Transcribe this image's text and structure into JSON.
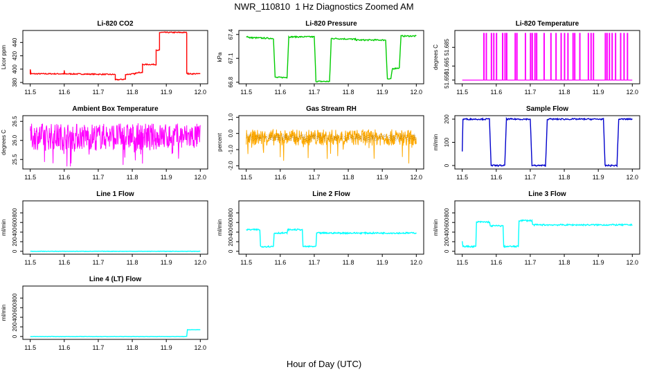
{
  "page": {
    "title": "NWR_110810  1 Hz Diagnostics Zoomed AM",
    "x_title": "Hour of Day (UTC)"
  },
  "chart_data": [
    {
      "type": "line",
      "title": "Li-820 CO2",
      "ylabel": "Licor ppm",
      "color": "#ff0000",
      "xlim": [
        11.5,
        12.0
      ],
      "xticks": [
        11.5,
        11.6,
        11.7,
        11.8,
        11.9,
        12.0
      ],
      "xtick_labels": [
        "11.5",
        "11.6",
        "11.7",
        "11.8",
        "11.9",
        "12.0"
      ],
      "ylim": [
        378,
        458
      ],
      "yticks": [
        380,
        400,
        420,
        440
      ],
      "ytick_labels": [
        "380",
        "400",
        "420",
        "440"
      ],
      "noise": 0.8,
      "points": [
        [
          11.5,
          393
        ],
        [
          11.5,
          400
        ],
        [
          11.502,
          393
        ],
        [
          11.6,
          393
        ],
        [
          11.6,
          398
        ],
        [
          11.601,
          393
        ],
        [
          11.75,
          392
        ],
        [
          11.75,
          384
        ],
        [
          11.752,
          384
        ],
        [
          11.78,
          385
        ],
        [
          11.78,
          392
        ],
        [
          11.81,
          393
        ],
        [
          11.81,
          395
        ],
        [
          11.83,
          395
        ],
        [
          11.83,
          407
        ],
        [
          11.87,
          407
        ],
        [
          11.87,
          428
        ],
        [
          11.88,
          428
        ],
        [
          11.88,
          455
        ],
        [
          11.96,
          455
        ],
        [
          11.96,
          394
        ],
        [
          11.965,
          393
        ],
        [
          12.0,
          393
        ]
      ]
    },
    {
      "type": "line",
      "title": "Li-820 Pressure",
      "ylabel": "kPa",
      "color": "#00cc00",
      "xlim": [
        11.5,
        12.0
      ],
      "xticks": [
        11.5,
        11.6,
        11.7,
        11.8,
        11.9,
        12.0
      ],
      "xtick_labels": [
        "11.5",
        "11.6",
        "11.7",
        "11.8",
        "11.9",
        "12.0"
      ],
      "ylim": [
        66.78,
        67.45
      ],
      "yticks": [
        66.8,
        67.1,
        67.4
      ],
      "ytick_labels": [
        "66.8",
        "67.1",
        "67.4"
      ],
      "noise": 0.008,
      "points": [
        [
          11.5,
          67.38
        ],
        [
          11.51,
          67.36
        ],
        [
          11.58,
          67.35
        ],
        [
          11.585,
          66.86
        ],
        [
          11.62,
          66.86
        ],
        [
          11.625,
          67.37
        ],
        [
          11.7,
          67.37
        ],
        [
          11.705,
          66.81
        ],
        [
          11.745,
          66.81
        ],
        [
          11.75,
          67.35
        ],
        [
          11.82,
          67.34
        ],
        [
          11.825,
          67.33
        ],
        [
          11.91,
          67.33
        ],
        [
          11.915,
          66.84
        ],
        [
          11.925,
          66.84
        ],
        [
          11.93,
          66.97
        ],
        [
          11.95,
          66.98
        ],
        [
          11.955,
          67.38
        ],
        [
          12.0,
          67.38
        ]
      ]
    },
    {
      "type": "line",
      "title": "Li-820 Temperature",
      "ylabel": "degrees C",
      "color": "#ff00ff",
      "xlim": [
        11.5,
        12.0
      ],
      "xticks": [
        11.5,
        11.6,
        11.7,
        11.8,
        11.9,
        12.0
      ],
      "xtick_labels": [
        "11.5",
        "11.6",
        "11.7",
        "11.8",
        "11.9",
        "12.0"
      ],
      "ylim": [
        51.646,
        51.703
      ],
      "yticks": [
        51.65,
        51.665,
        51.685
      ],
      "ytick_labels": [
        "51.650",
        "51.665",
        "51.685"
      ],
      "baseline": 51.65,
      "spike_to": 51.7,
      "spikes": [
        11.563,
        11.57,
        11.585,
        11.592,
        11.6,
        11.618,
        11.625,
        11.63,
        11.655,
        11.66,
        11.685,
        11.7,
        11.705,
        11.713,
        11.718,
        11.74,
        11.76,
        11.775,
        11.79,
        11.8,
        11.81,
        11.825,
        11.83,
        11.845,
        11.87,
        11.878,
        11.885,
        11.92,
        11.925,
        11.932,
        11.94,
        11.95,
        11.965,
        11.975,
        11.985
      ]
    },
    {
      "type": "line",
      "title": "Ambient Box Temperature",
      "ylabel": "degrees C",
      "color": "#ff00ff",
      "xlim": [
        11.5,
        12.0
      ],
      "xticks": [
        11.5,
        11.6,
        11.7,
        11.8,
        11.9,
        12.0
      ],
      "xtick_labels": [
        "11.5",
        "11.6",
        "11.7",
        "11.8",
        "11.9",
        "12.0"
      ],
      "ylim": [
        25.25,
        26.65
      ],
      "yticks": [
        25.5,
        26.0,
        26.5
      ],
      "ytick_labels": [
        "25.5",
        "26.0",
        "26.5"
      ],
      "band": [
        25.75,
        26.45
      ],
      "outlier_low": 25.3,
      "samples": 500
    },
    {
      "type": "line",
      "title": "Gas Stream RH",
      "ylabel": "percent",
      "color": "#ffaa00",
      "overlay_color": "#996600",
      "xlim": [
        11.5,
        12.0
      ],
      "xticks": [
        11.5,
        11.6,
        11.7,
        11.8,
        11.9,
        12.0
      ],
      "xtick_labels": [
        "11.5",
        "11.6",
        "11.7",
        "11.8",
        "11.9",
        "12.0"
      ],
      "ylim": [
        -2.2,
        1.1
      ],
      "yticks": [
        -2.0,
        -1.0,
        0.0,
        1.0
      ],
      "ytick_labels": [
        "-2.0",
        "-1.0",
        "0.0",
        "1.0"
      ],
      "band": [
        -0.75,
        0.25
      ],
      "outlier_low": -1.9,
      "samples": 500
    },
    {
      "type": "line",
      "title": "Sample Flow",
      "ylabel": "ml/min",
      "color": "#0000cc",
      "xlim": [
        11.5,
        12.0
      ],
      "xticks": [
        11.5,
        11.6,
        11.7,
        11.8,
        11.9,
        12.0
      ],
      "xtick_labels": [
        "11.5",
        "11.6",
        "11.7",
        "11.8",
        "11.9",
        "12.0"
      ],
      "ylim": [
        -15,
        215
      ],
      "yticks": [
        0,
        100,
        200
      ],
      "ytick_labels": [
        "0",
        "100",
        "200"
      ],
      "noise": 3,
      "points": [
        [
          11.5,
          60
        ],
        [
          11.502,
          200
        ],
        [
          11.58,
          200
        ],
        [
          11.585,
          0
        ],
        [
          11.625,
          0
        ],
        [
          11.63,
          200
        ],
        [
          11.7,
          200
        ],
        [
          11.705,
          0
        ],
        [
          11.745,
          0
        ],
        [
          11.75,
          200
        ],
        [
          11.915,
          200
        ],
        [
          11.92,
          0
        ],
        [
          11.955,
          0
        ],
        [
          11.96,
          200
        ],
        [
          12.0,
          200
        ]
      ]
    },
    {
      "type": "line",
      "title": "Line 1 Flow",
      "ylabel": "ml/min",
      "color": "#00ffff",
      "xlim": [
        11.5,
        12.0
      ],
      "xticks": [
        11.5,
        11.6,
        11.7,
        11.8,
        11.9,
        12.0
      ],
      "xtick_labels": [
        "11.5",
        "11.6",
        "11.7",
        "11.8",
        "11.9",
        "12.0"
      ],
      "ylim": [
        -60,
        1050
      ],
      "yticks": [
        0,
        200,
        400,
        600,
        800
      ],
      "ytick_labels": [
        "0",
        "200",
        "400",
        "600",
        "800"
      ],
      "noise": 4,
      "points": [
        [
          11.5,
          0
        ],
        [
          12.0,
          0
        ]
      ]
    },
    {
      "type": "line",
      "title": "Line 2 Flow",
      "ylabel": "ml/min",
      "color": "#00ffff",
      "xlim": [
        11.5,
        12.0
      ],
      "xticks": [
        11.5,
        11.6,
        11.7,
        11.8,
        11.9,
        12.0
      ],
      "xtick_labels": [
        "11.5",
        "11.6",
        "11.7",
        "11.8",
        "11.9",
        "12.0"
      ],
      "ylim": [
        -60,
        1050
      ],
      "yticks": [
        0,
        200,
        400,
        600,
        800
      ],
      "ytick_labels": [
        "0",
        "200",
        "400",
        "600",
        "800"
      ],
      "noise": 15,
      "points": [
        [
          11.5,
          450
        ],
        [
          11.54,
          450
        ],
        [
          11.542,
          100
        ],
        [
          11.58,
          100
        ],
        [
          11.582,
          380
        ],
        [
          11.62,
          380
        ],
        [
          11.622,
          450
        ],
        [
          11.665,
          450
        ],
        [
          11.667,
          100
        ],
        [
          11.705,
          100
        ],
        [
          11.707,
          380
        ],
        [
          12.0,
          380
        ]
      ]
    },
    {
      "type": "line",
      "title": "Line 3 Flow",
      "ylabel": "ml/min",
      "color": "#00ffff",
      "xlim": [
        11.5,
        12.0
      ],
      "xticks": [
        11.5,
        11.6,
        11.7,
        11.8,
        11.9,
        12.0
      ],
      "xtick_labels": [
        "11.5",
        "11.6",
        "11.7",
        "11.8",
        "11.9",
        "12.0"
      ],
      "ylim": [
        -60,
        1050
      ],
      "yticks": [
        0,
        200,
        400,
        600,
        800
      ],
      "ytick_labels": [
        "0",
        "200",
        "400",
        "600",
        "800"
      ],
      "noise": 15,
      "points": [
        [
          11.5,
          220
        ],
        [
          11.502,
          100
        ],
        [
          11.54,
          100
        ],
        [
          11.542,
          610
        ],
        [
          11.58,
          610
        ],
        [
          11.582,
          530
        ],
        [
          11.62,
          530
        ],
        [
          11.622,
          100
        ],
        [
          11.665,
          100
        ],
        [
          11.667,
          640
        ],
        [
          11.705,
          640
        ],
        [
          11.707,
          550
        ],
        [
          12.0,
          550
        ]
      ]
    },
    {
      "type": "line",
      "title": "Line 4 (LT) Flow",
      "ylabel": "ml/min",
      "color": "#00ffff",
      "xlim": [
        11.5,
        12.0
      ],
      "xticks": [
        11.5,
        11.6,
        11.7,
        11.8,
        11.9,
        12.0
      ],
      "xtick_labels": [
        "11.5",
        "11.6",
        "11.7",
        "11.8",
        "11.9",
        "12.0"
      ],
      "ylim": [
        -60,
        1050
      ],
      "yticks": [
        0,
        200,
        400,
        600,
        800
      ],
      "ytick_labels": [
        "0",
        "200",
        "400",
        "600",
        "800"
      ],
      "noise": 3,
      "points": [
        [
          11.5,
          0
        ],
        [
          11.96,
          0
        ],
        [
          11.962,
          140
        ],
        [
          12.0,
          140
        ]
      ]
    }
  ]
}
